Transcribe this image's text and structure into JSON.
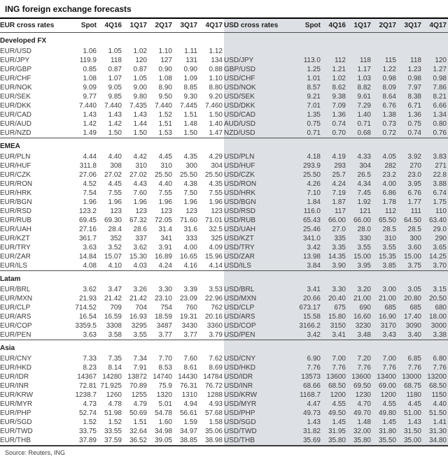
{
  "title": "ING foreign exchange forecasts",
  "source": "Source: Reuters, ING",
  "colors": {
    "panel_gray": "#dde0e4",
    "rule_dark": "#4d4d4d",
    "text": "#3b3b3b"
  },
  "table": {
    "left_header": "EUR cross rates",
    "right_header": "USD cross rates",
    "period_columns": [
      "Spot",
      "4Q16",
      "1Q17",
      "2Q17",
      "3Q17",
      "4Q17"
    ],
    "sections": [
      {
        "name": "Developed FX",
        "rows": [
          {
            "eur_pair": "EUR/USD",
            "eur": [
              "1.06",
              "1.05",
              "1.02",
              "1.10",
              "1.11",
              "1.12"
            ],
            "usd_pair": "",
            "usd": [
              "",
              "",
              "",
              "",
              "",
              ""
            ]
          },
          {
            "eur_pair": "EUR/JPY",
            "eur": [
              "119.9",
              "118",
              "120",
              "127",
              "131",
              "134"
            ],
            "usd_pair": "USD/JPY",
            "usd": [
              "113.0",
              "112",
              "118",
              "115",
              "118",
              "120"
            ]
          },
          {
            "eur_pair": "EUR/GBP",
            "eur": [
              "0.85",
              "0.87",
              "0.87",
              "0.90",
              "0.90",
              "0.88"
            ],
            "usd_pair": "GBP/USD",
            "usd": [
              "1.25",
              "1.21",
              "1.17",
              "1.22",
              "1.23",
              "1.27"
            ]
          },
          {
            "eur_pair": "EUR/CHF",
            "eur": [
              "1.08",
              "1.07",
              "1.05",
              "1.08",
              "1.09",
              "1.10"
            ],
            "usd_pair": "USD/CHF",
            "usd": [
              "1.01",
              "1.02",
              "1.03",
              "0.98",
              "0.98",
              "0.98"
            ]
          },
          {
            "eur_pair": "EUR/NOK",
            "eur": [
              "9.09",
              "9.05",
              "9.00",
              "8.90",
              "8.85",
              "8.80"
            ],
            "usd_pair": "USD/NOK",
            "usd": [
              "8.57",
              "8.62",
              "8.82",
              "8.09",
              "7.97",
              "7.86"
            ]
          },
          {
            "eur_pair": "EUR/SEK",
            "eur": [
              "9.77",
              "9.85",
              "9.80",
              "9.50",
              "9.30",
              "9.20"
            ],
            "usd_pair": "USD/SEK",
            "usd": [
              "9.21",
              "9.38",
              "9.61",
              "8.64",
              "8.38",
              "8.21"
            ]
          },
          {
            "eur_pair": "EUR/DKK",
            "eur": [
              "7.440",
              "7.440",
              "7.435",
              "7.440",
              "7.445",
              "7.460"
            ],
            "usd_pair": "USD/DKK",
            "usd": [
              "7.01",
              "7.09",
              "7.29",
              "6.76",
              "6.71",
              "6.66"
            ]
          },
          {
            "eur_pair": "EUR/CAD",
            "eur": [
              "1.43",
              "1.43",
              "1.43",
              "1.52",
              "1.51",
              "1.50"
            ],
            "usd_pair": "USD/CAD",
            "usd": [
              "1.35",
              "1.36",
              "1.40",
              "1.38",
              "1.36",
              "1.34"
            ]
          },
          {
            "eur_pair": "EUR/AUD",
            "eur": [
              "1.42",
              "1.42",
              "1.44",
              "1.51",
              "1.48",
              "1.40"
            ],
            "usd_pair": "AUD/USD",
            "usd": [
              "0.75",
              "0.74",
              "0.71",
              "0.73",
              "0.75",
              "0.80"
            ]
          },
          {
            "eur_pair": "EUR/NZD",
            "eur": [
              "1.49",
              "1.50",
              "1.50",
              "1.53",
              "1.50",
              "1.47"
            ],
            "usd_pair": "NZD/USD",
            "usd": [
              "0.71",
              "0.70",
              "0.68",
              "0.72",
              "0.74",
              "0.76"
            ]
          }
        ]
      },
      {
        "name": "EMEA",
        "rows": [
          {
            "eur_pair": "EUR/PLN",
            "eur": [
              "4.44",
              "4.40",
              "4.42",
              "4.45",
              "4.35",
              "4.29"
            ],
            "usd_pair": "USD/PLN",
            "usd": [
              "4.18",
              "4.19",
              "4.33",
              "4.05",
              "3.92",
              "3.83"
            ]
          },
          {
            "eur_pair": "EUR/HUF",
            "eur": [
              "311.8",
              "308",
              "310",
              "310",
              "300",
              "304"
            ],
            "usd_pair": "USD/HUF",
            "usd": [
              "293.9",
              "293",
              "304",
              "282",
              "270",
              "271"
            ]
          },
          {
            "eur_pair": "EUR/CZK",
            "eur": [
              "27.06",
              "27.02",
              "27.02",
              "25.50",
              "25.50",
              "25.50"
            ],
            "usd_pair": "USD/CZK",
            "usd": [
              "25.50",
              "25.7",
              "26.5",
              "23.2",
              "23.0",
              "22.8"
            ]
          },
          {
            "eur_pair": "EUR/RON",
            "eur": [
              "4.52",
              "4.45",
              "4.43",
              "4.40",
              "4.38",
              "4.35"
            ],
            "usd_pair": "USD/RON",
            "usd": [
              "4.26",
              "4.24",
              "4.34",
              "4.00",
              "3.95",
              "3.88"
            ]
          },
          {
            "eur_pair": "EUR/HRK",
            "eur": [
              "7.54",
              "7.55",
              "7.60",
              "7.55",
              "7.50",
              "7.55"
            ],
            "usd_pair": "USD/HRK",
            "usd": [
              "7.10",
              "7.19",
              "7.45",
              "6.86",
              "6.76",
              "6.74"
            ]
          },
          {
            "eur_pair": "EUR/BGN",
            "eur": [
              "1.96",
              "1.96",
              "1.96",
              "1.96",
              "1.96",
              "1.96"
            ],
            "usd_pair": "USD/BGN",
            "usd": [
              "1.84",
              "1.87",
              "1.92",
              "1.78",
              "1.77",
              "1.75"
            ]
          },
          {
            "eur_pair": "EUR/RSD",
            "eur": [
              "123.2",
              "123",
              "123",
              "123",
              "123",
              "123"
            ],
            "usd_pair": "USD/RSD",
            "usd": [
              "116.0",
              "117",
              "121",
              "112",
              "111",
              "110"
            ]
          },
          {
            "eur_pair": "EUR/RUB",
            "eur": [
              "69.45",
              "69.30",
              "67.32",
              "72.05",
              "71.60",
              "71.01"
            ],
            "usd_pair": "USD/RUB",
            "usd": [
              "65.43",
              "66.00",
              "66.00",
              "65.50",
              "64.50",
              "63.40"
            ]
          },
          {
            "eur_pair": "EUR/UAH",
            "eur": [
              "27.16",
              "28.4",
              "28.6",
              "31.4",
              "31.6",
              "32.5"
            ],
            "usd_pair": "USD/UAH",
            "usd": [
              "25.46",
              "27.0",
              "28.0",
              "28.5",
              "28.5",
              "29.0"
            ]
          },
          {
            "eur_pair": "EUR/KZT",
            "eur": [
              "361.7",
              "352",
              "337",
              "341",
              "333",
              "325"
            ],
            "usd_pair": "USD/KZT",
            "usd": [
              "341.0",
              "335",
              "330",
              "310",
              "300",
              "290"
            ]
          },
          {
            "eur_pair": "EUR/TRY",
            "eur": [
              "3.63",
              "3.52",
              "3.62",
              "3.91",
              "4.00",
              "4.09"
            ],
            "usd_pair": "USD/TRY",
            "usd": [
              "3.42",
              "3.35",
              "3.55",
              "3.55",
              "3.60",
              "3.65"
            ]
          },
          {
            "eur_pair": "EUR/ZAR",
            "eur": [
              "14.84",
              "15.07",
              "15.30",
              "16.89",
              "16.65",
              "15.96"
            ],
            "usd_pair": "USD/ZAR",
            "usd": [
              "13.98",
              "14.35",
              "15.00",
              "15.35",
              "15.00",
              "14.25"
            ]
          },
          {
            "eur_pair": "EUR/ILS",
            "eur": [
              "4.08",
              "4.10",
              "4.03",
              "4.24",
              "4.16",
              "4.14"
            ],
            "usd_pair": "USD/ILS",
            "usd": [
              "3.84",
              "3.90",
              "3.95",
              "3.85",
              "3.75",
              "3.70"
            ]
          }
        ]
      },
      {
        "name": "Latam",
        "rows": [
          {
            "eur_pair": "EUR/BRL",
            "eur": [
              "3.62",
              "3.47",
              "3.26",
              "3.30",
              "3.39",
              "3.53"
            ],
            "usd_pair": "USD/BRL",
            "usd": [
              "3.41",
              "3.30",
              "3.20",
              "3.00",
              "3.05",
              "3.15"
            ]
          },
          {
            "eur_pair": "EUR/MXN",
            "eur": [
              "21.93",
              "21.42",
              "21.42",
              "23.10",
              "23.09",
              "22.96"
            ],
            "usd_pair": "USD/MXN",
            "usd": [
              "20.66",
              "20.40",
              "21.00",
              "21.00",
              "20.80",
              "20.50"
            ]
          },
          {
            "eur_pair": "EUR/CLP",
            "eur": [
              "714.52",
              "709",
              "704",
              "754",
              "760",
              "762"
            ],
            "usd_pair": "USD/CLP",
            "usd": [
              "673.17",
              "675",
              "690",
              "685",
              "685",
              "680"
            ]
          },
          {
            "eur_pair": "EUR/ARS",
            "eur": [
              "16.54",
              "16.59",
              "16.93",
              "18.59",
              "19.31",
              "20.16"
            ],
            "usd_pair": "USD/ARS",
            "usd": [
              "15.58",
              "15.80",
              "16.60",
              "16.90",
              "17.40",
              "18.00"
            ]
          },
          {
            "eur_pair": "EUR/COP",
            "eur": [
              "3359.5",
              "3308",
              "3295",
              "3487",
              "3430",
              "3360"
            ],
            "usd_pair": "USD/COP",
            "usd": [
              "3166.2",
              "3150",
              "3230",
              "3170",
              "3090",
              "3000"
            ]
          },
          {
            "eur_pair": "EUR/PEN",
            "eur": [
              "3.63",
              "3.58",
              "3.55",
              "3.77",
              "3.77",
              "3.79"
            ],
            "usd_pair": "USD/PEN",
            "usd": [
              "3.42",
              "3.41",
              "3.48",
              "3.43",
              "3.40",
              "3.38"
            ]
          }
        ]
      },
      {
        "name": "Asia",
        "rows": [
          {
            "eur_pair": "EUR/CNY",
            "eur": [
              "7.33",
              "7.35",
              "7.34",
              "7.70",
              "7.60",
              "7.62"
            ],
            "usd_pair": "USD/CNY",
            "usd": [
              "6.90",
              "7.00",
              "7.20",
              "7.00",
              "6.85",
              "6.80"
            ]
          },
          {
            "eur_pair": "EUR/HKD",
            "eur": [
              "8.23",
              "8.14",
              "7.91",
              "8.53",
              "8.61",
              "8.69"
            ],
            "usd_pair": "USD/HKD",
            "usd": [
              "7.76",
              "7.76",
              "7.76",
              "7.76",
              "7.76",
              "7.76"
            ]
          },
          {
            "eur_pair": "EUR/IDR",
            "eur": [
              "14367",
              "14280",
              "13872",
              "14740",
              "14430",
              "14784"
            ],
            "usd_pair": "USD/IDR",
            "usd": [
              "13573",
              "13600",
              "13600",
              "13400",
              "13000",
              "13200"
            ]
          },
          {
            "eur_pair": "EUR/INR",
            "eur": [
              "72.81",
              "71.925",
              "70.89",
              "75.9",
              "76.31",
              "76.72"
            ],
            "usd_pair": "USD/INR",
            "usd": [
              "68.66",
              "68.50",
              "69.50",
              "69.00",
              "68.75",
              "68.50"
            ]
          },
          {
            "eur_pair": "EUR/KRW",
            "eur": [
              "1238.7",
              "1260",
              "1255",
              "1320",
              "1310",
              "1288"
            ],
            "usd_pair": "USD/KRW",
            "usd": [
              "1168.7",
              "1200",
              "1230",
              "1200",
              "1180",
              "1150"
            ]
          },
          {
            "eur_pair": "EUR/MYR",
            "eur": [
              "4.73",
              "4.78",
              "4.79",
              "5.01",
              "4.94",
              "4.93"
            ],
            "usd_pair": "USD/MYR",
            "usd": [
              "4.47",
              "4.55",
              "4.70",
              "4.55",
              "4.45",
              "4.40"
            ]
          },
          {
            "eur_pair": "EUR/PHP",
            "eur": [
              "52.74",
              "51.98",
              "50.69",
              "54.78",
              "56.61",
              "57.68"
            ],
            "usd_pair": "USD/PHP",
            "usd": [
              "49.73",
              "49.50",
              "49.70",
              "49.80",
              "51.00",
              "51.50"
            ]
          },
          {
            "eur_pair": "EUR/SGD",
            "eur": [
              "1.52",
              "1.52",
              "1.51",
              "1.60",
              "1.59",
              "1.58"
            ],
            "usd_pair": "USD/SGD",
            "usd": [
              "1.43",
              "1.45",
              "1.48",
              "1.45",
              "1.43",
              "1.41"
            ]
          },
          {
            "eur_pair": "EUR/TWD",
            "eur": [
              "33.75",
              "33.55",
              "32.64",
              "34.98",
              "34.97",
              "35.06"
            ],
            "usd_pair": "USD/TWD",
            "usd": [
              "31.82",
              "31.95",
              "32.00",
              "31.80",
              "31.50",
              "31.30"
            ]
          },
          {
            "eur_pair": "EUR/THB",
            "eur": [
              "37.89",
              "37.59",
              "36.52",
              "39.05",
              "38.85",
              "38.98"
            ],
            "usd_pair": "USD/THB",
            "usd": [
              "35.69",
              "35.80",
              "35.80",
              "35.50",
              "35.00",
              "34.80"
            ]
          }
        ]
      }
    ]
  }
}
